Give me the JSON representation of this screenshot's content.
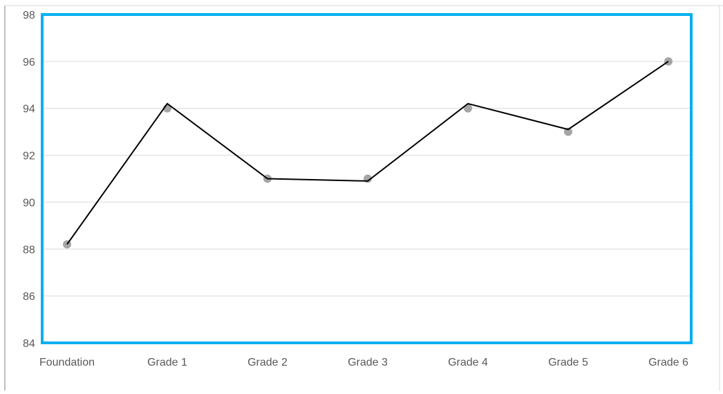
{
  "chart_data": {
    "type": "line",
    "title": "",
    "xlabel": "",
    "ylabel": "",
    "categories": [
      "Foundation",
      "Grade 1",
      "Grade 2",
      "Grade 3",
      "Grade 4",
      "Grade 5",
      "Grade 6"
    ],
    "ylim": [
      84,
      98
    ],
    "yticks": [
      84,
      86,
      88,
      90,
      92,
      94,
      96,
      98
    ],
    "grid": true,
    "legend": "none",
    "series": [
      {
        "marker_values": [
          88.2,
          94,
          91,
          91,
          94,
          93,
          96
        ],
        "trend_values": [
          88.2,
          94.2,
          91.0,
          90.9,
          94.2,
          93.1,
          96.0
        ]
      }
    ],
    "colors": {
      "markers": "#a5a5a5",
      "line": "#000000",
      "plot_border": "#00b0f0",
      "gridlines": "#d9d9d9",
      "tick_text": "#595959"
    }
  }
}
